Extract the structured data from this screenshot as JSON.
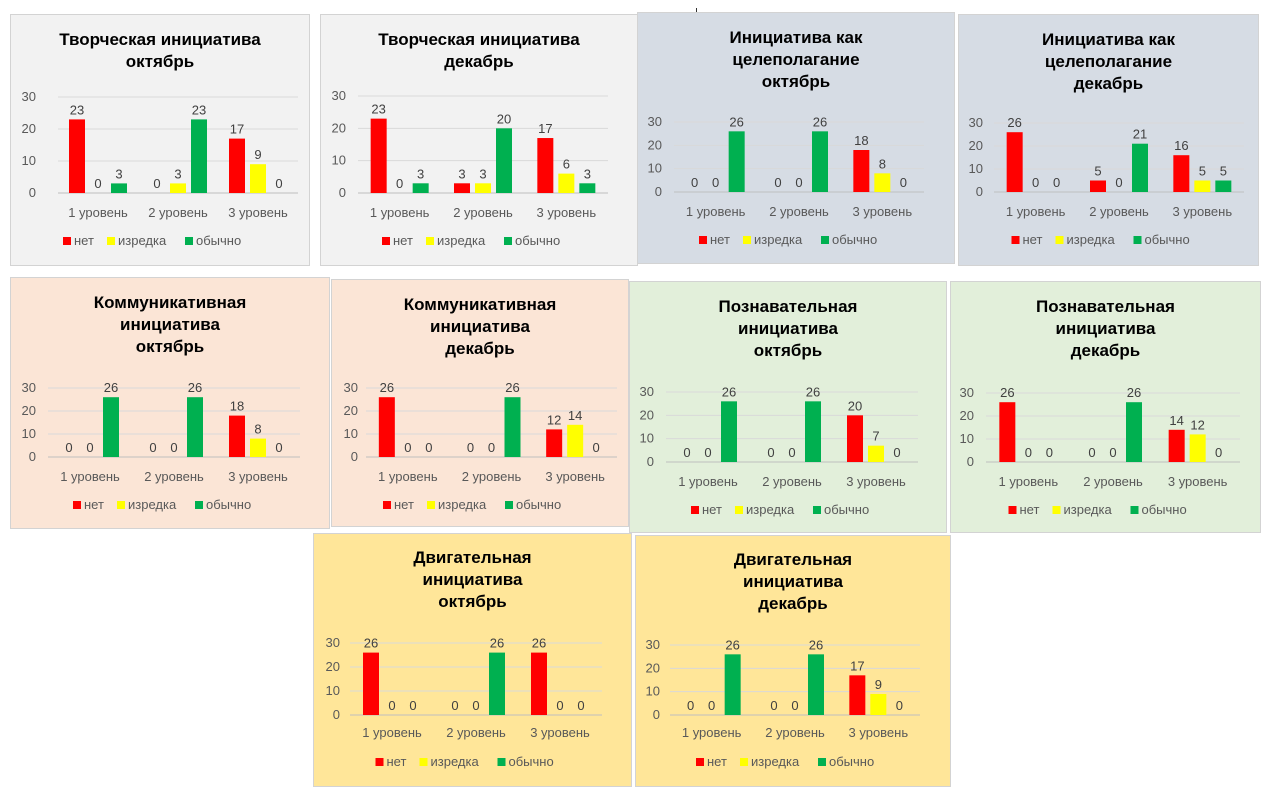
{
  "legend": {
    "net": "нет",
    "izredka": "изредка",
    "obychno": "обычно"
  },
  "colors": {
    "net": "#ff0000",
    "izredka": "#ffff00",
    "obychno": "#00b050"
  },
  "chart_data": [
    {
      "type": "bar",
      "title": "Творческая инициатива\nоктябрь",
      "categories": [
        "1 уровень",
        "2 уровень",
        "3 уровень"
      ],
      "ylim": [
        0,
        30
      ],
      "yticks": [
        0,
        10,
        20,
        30
      ],
      "legend_position": "bottom",
      "grid": true,
      "series": [
        {
          "name": "нет",
          "values": [
            23,
            0,
            17
          ]
        },
        {
          "name": "изредка",
          "values": [
            0,
            3,
            9
          ]
        },
        {
          "name": "обычно",
          "values": [
            3,
            23,
            0
          ]
        }
      ]
    },
    {
      "type": "bar",
      "title": "Творческая инициатива\nдекабрь",
      "categories": [
        "1 уровень",
        "2 уровень",
        "3 уровень"
      ],
      "ylim": [
        0,
        30
      ],
      "yticks": [
        0,
        10,
        20,
        30
      ],
      "legend_position": "bottom",
      "grid": true,
      "series": [
        {
          "name": "нет",
          "values": [
            23,
            3,
            17
          ]
        },
        {
          "name": "изредка",
          "values": [
            0,
            3,
            6
          ]
        },
        {
          "name": "обычно",
          "values": [
            3,
            20,
            3
          ]
        }
      ]
    },
    {
      "type": "bar",
      "title": "Инициатива как\nцелеполагание\nоктябрь",
      "categories": [
        "1 уровень",
        "2 уровень",
        "3 уровень"
      ],
      "ylim": [
        0,
        30
      ],
      "yticks": [
        0,
        10,
        20,
        30
      ],
      "legend_position": "bottom",
      "grid": true,
      "series": [
        {
          "name": "нет",
          "values": [
            0,
            0,
            18
          ]
        },
        {
          "name": "изредка",
          "values": [
            0,
            0,
            8
          ]
        },
        {
          "name": "обычно",
          "values": [
            26,
            26,
            0
          ]
        }
      ]
    },
    {
      "type": "bar",
      "title": "Инициатива как\nцелеполагание\nдекабрь",
      "categories": [
        "1 уровень",
        "2 уровень",
        "3 уровень"
      ],
      "ylim": [
        0,
        30
      ],
      "yticks": [
        0,
        10,
        20,
        30
      ],
      "legend_position": "bottom",
      "grid": true,
      "series": [
        {
          "name": "нет",
          "values": [
            26,
            5,
            16
          ]
        },
        {
          "name": "изредка",
          "values": [
            0,
            0,
            5
          ]
        },
        {
          "name": "обычно",
          "values": [
            0,
            21,
            5
          ]
        }
      ]
    },
    {
      "type": "bar",
      "title": "Коммуникативная\nинициатива\nоктябрь",
      "categories": [
        "1 уровень",
        "2 уровень",
        "3 уровень"
      ],
      "ylim": [
        0,
        30
      ],
      "yticks": [
        0,
        10,
        20,
        30
      ],
      "legend_position": "bottom",
      "grid": true,
      "series": [
        {
          "name": "нет",
          "values": [
            0,
            0,
            18
          ]
        },
        {
          "name": "изредка",
          "values": [
            0,
            0,
            8
          ]
        },
        {
          "name": "обычно",
          "values": [
            26,
            26,
            0
          ]
        }
      ]
    },
    {
      "type": "bar",
      "title": "Коммуникативная\nинициатива\nдекабрь",
      "categories": [
        "1 уровень",
        "2 уровень",
        "3 уровень"
      ],
      "ylim": [
        0,
        30
      ],
      "yticks": [
        0,
        10,
        20,
        30
      ],
      "legend_position": "bottom",
      "grid": true,
      "series": [
        {
          "name": "нет",
          "values": [
            26,
            0,
            12
          ]
        },
        {
          "name": "изредка",
          "values": [
            0,
            0,
            14
          ]
        },
        {
          "name": "обычно",
          "values": [
            0,
            26,
            0
          ]
        }
      ]
    },
    {
      "type": "bar",
      "title": "Познавательная\nинициатива\nоктябрь",
      "categories": [
        "1 уровень",
        "2 уровень",
        "3 уровень"
      ],
      "ylim": [
        0,
        30
      ],
      "yticks": [
        0,
        10,
        20,
        30
      ],
      "legend_position": "bottom",
      "grid": true,
      "series": [
        {
          "name": "нет",
          "values": [
            0,
            0,
            20
          ]
        },
        {
          "name": "изредка",
          "values": [
            0,
            0,
            7
          ]
        },
        {
          "name": "обычно",
          "values": [
            26,
            26,
            0
          ]
        }
      ]
    },
    {
      "type": "bar",
      "title": "Познавательная\nинициатива\nдекабрь",
      "categories": [
        "1 уровень",
        "2 уровень",
        "3 уровень"
      ],
      "ylim": [
        0,
        30
      ],
      "yticks": [
        0,
        10,
        20,
        30
      ],
      "legend_position": "bottom",
      "grid": true,
      "series": [
        {
          "name": "нет",
          "values": [
            26,
            0,
            14
          ]
        },
        {
          "name": "изредка",
          "values": [
            0,
            0,
            12
          ]
        },
        {
          "name": "обычно",
          "values": [
            0,
            26,
            0
          ]
        }
      ]
    },
    {
      "type": "bar",
      "title": "Двигательная\nинициатива\nоктябрь",
      "categories": [
        "1 уровень",
        "2 уровень",
        "3 уровень"
      ],
      "ylim": [
        0,
        30
      ],
      "yticks": [
        0,
        10,
        20,
        30
      ],
      "legend_position": "bottom",
      "grid": true,
      "series": [
        {
          "name": "нет",
          "values": [
            26,
            0,
            26
          ]
        },
        {
          "name": "изредка",
          "values": [
            0,
            0,
            0
          ]
        },
        {
          "name": "обычно",
          "values": [
            0,
            26,
            0
          ]
        }
      ]
    },
    {
      "type": "bar",
      "title": "Двигательная\nинициатива\nдекабрь",
      "categories": [
        "1 уровень",
        "2 уровень",
        "3 уровень"
      ],
      "ylim": [
        0,
        30
      ],
      "yticks": [
        0,
        10,
        20,
        30
      ],
      "legend_position": "bottom",
      "grid": true,
      "series": [
        {
          "name": "нет",
          "values": [
            0,
            0,
            17
          ]
        },
        {
          "name": "изредка",
          "values": [
            0,
            0,
            9
          ]
        },
        {
          "name": "обычно",
          "values": [
            26,
            26,
            0
          ]
        }
      ]
    }
  ]
}
